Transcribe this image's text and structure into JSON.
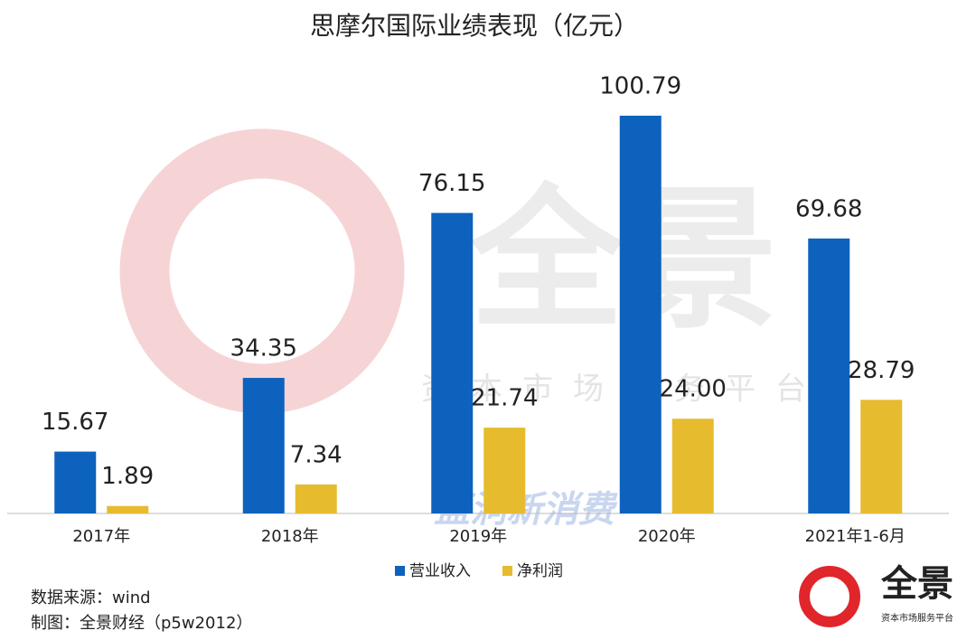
{
  "chart_data": {
    "type": "bar",
    "title": "思摩尔国际业绩表现（亿元）",
    "categories": [
      "2017年",
      "2018年",
      "2019年",
      "2020年",
      "2021年1-6月"
    ],
    "series": [
      {
        "name": "营业收入",
        "color": "#0d62bd",
        "values": [
          15.67,
          34.35,
          76.15,
          100.79,
          69.68
        ],
        "value_labels": [
          "15.67",
          "34.35",
          "76.15",
          "100.79",
          "69.68"
        ]
      },
      {
        "name": "净利润",
        "color": "#e6bb2e",
        "values": [
          1.89,
          7.34,
          21.74,
          24.0,
          28.79
        ],
        "value_labels": [
          "1.89",
          "7.34",
          "21.74",
          "24.00",
          "28.79"
        ]
      }
    ],
    "source": "数据来源：wind",
    "credit": "制图：全景财经（p5w2012）",
    "watermarks": [
      "全景",
      "资本市场服务平台",
      "蓝洞新消费"
    ],
    "logo": {
      "name": "全景",
      "slogan": "资本市场服务平台"
    }
  }
}
